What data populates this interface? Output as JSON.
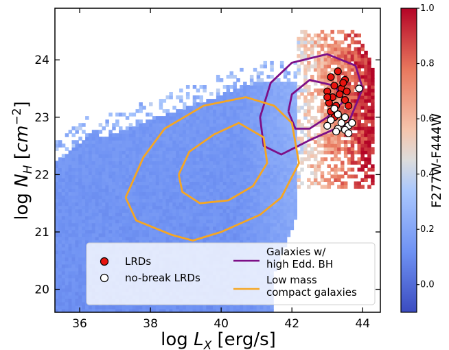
{
  "chart_data": {
    "type": "heatmap",
    "xlabel": "log L_X [erg/s]",
    "ylabel": "log N_H [cm^-2]",
    "xlim": [
      35.3,
      44.5
    ],
    "ylim": [
      19.6,
      24.9
    ],
    "xticks": [
      36,
      38,
      40,
      42,
      44
    ],
    "yticks": [
      20,
      21,
      22,
      23,
      24
    ],
    "colorbar": {
      "label": "F277W-F444W",
      "range": [
        -0.1,
        1.0
      ],
      "ticks": [
        0.0,
        0.2,
        0.4,
        0.6,
        0.8,
        1.0
      ],
      "tick_labels": [
        "0.0",
        "0.2",
        "0.4",
        "0.6",
        "0.8",
        "1.0"
      ],
      "colormap": "coolwarm"
    },
    "heatmap_regions": [
      {
        "description_values": "low-luminosity blue region",
        "x_range": [
          35.3,
          42.0
        ],
        "y_range": [
          19.6,
          23.3
        ],
        "color_value": 0.15
      },
      {
        "description_values": "high-luminosity red region",
        "x_range": [
          42.5,
          44.2
        ],
        "y_range": [
          21.8,
          24.6
        ],
        "color_value": 0.85
      }
    ],
    "series": [
      {
        "name": "LRDs",
        "type": "scatter",
        "color": "#e8140f",
        "points": [
          [
            43.1,
            23.7
          ],
          [
            43.3,
            23.8
          ],
          [
            43.5,
            23.65
          ],
          [
            43.2,
            23.55
          ],
          [
            43.0,
            23.45
          ],
          [
            43.4,
            23.5
          ],
          [
            43.15,
            23.35
          ],
          [
            43.35,
            23.4
          ],
          [
            43.05,
            23.25
          ],
          [
            43.25,
            23.2
          ],
          [
            43.5,
            23.3
          ],
          [
            43.1,
            23.1
          ],
          [
            43.6,
            23.2
          ],
          [
            43.3,
            23.05
          ],
          [
            43.55,
            23.45
          ],
          [
            43.0,
            23.35
          ],
          [
            43.45,
            23.6
          ],
          [
            43.2,
            23.0
          ]
        ]
      },
      {
        "name": "no-break LRDs",
        "type": "scatter",
        "color": "#ffffff",
        "points": [
          [
            43.9,
            23.5
          ],
          [
            43.3,
            23.05
          ],
          [
            43.5,
            23.0
          ],
          [
            43.1,
            22.95
          ],
          [
            43.4,
            22.9
          ],
          [
            43.6,
            22.85
          ],
          [
            43.3,
            22.8
          ],
          [
            43.5,
            22.78
          ],
          [
            43.25,
            22.75
          ],
          [
            43.6,
            22.72
          ],
          [
            43.0,
            22.85
          ],
          [
            43.7,
            22.9
          ],
          [
            43.2,
            23.15
          ]
        ]
      },
      {
        "name": "Galaxies w/ high Edd. BH",
        "type": "contour",
        "color": "#7d0f87",
        "levels": [
          [
            [
              41.1,
              23.0
            ],
            [
              41.4,
              23.6
            ],
            [
              42.0,
              23.95
            ],
            [
              43.0,
              24.1
            ],
            [
              43.8,
              23.9
            ],
            [
              44.0,
              23.5
            ],
            [
              43.6,
              22.9
            ],
            [
              42.5,
              22.6
            ],
            [
              41.7,
              22.35
            ],
            [
              41.2,
              22.5
            ],
            [
              41.1,
              23.0
            ]
          ],
          [
            [
              41.9,
              23.1
            ],
            [
              42.0,
              23.4
            ],
            [
              42.5,
              23.65
            ],
            [
              43.2,
              23.55
            ],
            [
              43.5,
              23.3
            ],
            [
              43.0,
              23.0
            ],
            [
              42.5,
              22.8
            ],
            [
              42.1,
              22.8
            ],
            [
              41.9,
              23.1
            ]
          ]
        ]
      },
      {
        "name": "Low mass compact galaxies",
        "type": "contour",
        "color": "#f5a623",
        "levels": [
          [
            [
              37.3,
              21.6
            ],
            [
              37.8,
              22.3
            ],
            [
              38.4,
              22.8
            ],
            [
              39.5,
              23.2
            ],
            [
              40.7,
              23.35
            ],
            [
              41.5,
              23.2
            ],
            [
              42.0,
              22.9
            ],
            [
              42.2,
              22.2
            ],
            [
              41.7,
              21.6
            ],
            [
              41.1,
              21.3
            ],
            [
              40.0,
              21.0
            ],
            [
              39.2,
              20.85
            ],
            [
              38.6,
              20.95
            ],
            [
              37.6,
              21.2
            ],
            [
              37.3,
              21.6
            ]
          ],
          [
            [
              38.8,
              22.0
            ],
            [
              39.1,
              22.4
            ],
            [
              39.8,
              22.7
            ],
            [
              40.5,
              22.9
            ],
            [
              41.2,
              22.65
            ],
            [
              41.3,
              22.2
            ],
            [
              40.9,
              21.8
            ],
            [
              40.2,
              21.55
            ],
            [
              39.4,
              21.5
            ],
            [
              38.9,
              21.7
            ],
            [
              38.8,
              22.0
            ]
          ]
        ]
      }
    ],
    "legend": {
      "position": "lower-center",
      "entries": [
        "LRDs",
        "no-break LRDs",
        "Galaxies w/ high Edd. BH",
        "Low mass compact galaxies"
      ]
    }
  },
  "labels": {
    "xlabel_main": "log ",
    "xlabel_var": "L",
    "xlabel_sub": "X",
    "xlabel_unit": " [erg/s]",
    "ylabel_main": "log ",
    "ylabel_var": "N",
    "ylabel_sub": "H",
    "ylabel_unit": " [",
    "ylabel_unit_var": "cm",
    "ylabel_unit_sup": "−2",
    "ylabel_close": "]",
    "legend_lrds": "LRDs",
    "legend_nobreak": "no-break LRDs",
    "legend_edd_1": "Galaxies w/",
    "legend_edd_2": "high Edd. BH",
    "legend_low_1": "Low mass",
    "legend_low_2": "compact galaxies",
    "cb_label": "F277W-F444W"
  }
}
